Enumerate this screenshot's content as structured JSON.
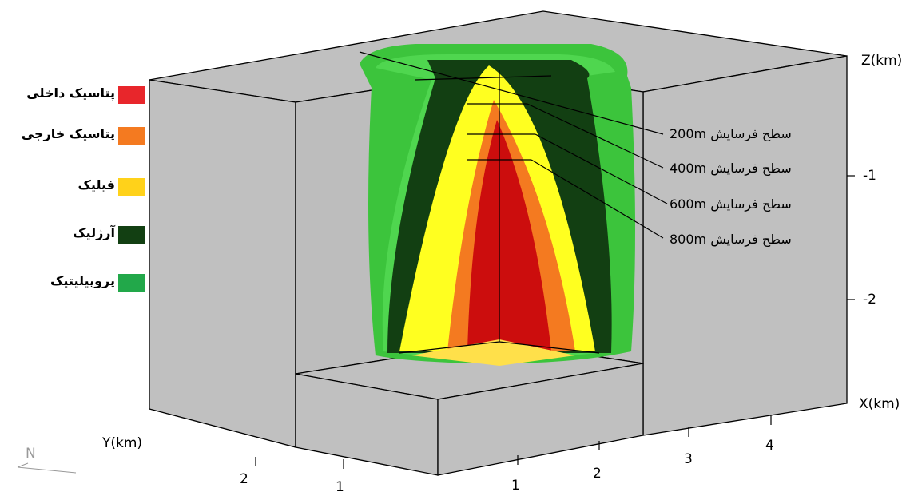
{
  "legend": [
    {
      "label": "پتاسیک داخلی",
      "color": "#e8262b"
    },
    {
      "label": "پتاسیک خارجی",
      "color": "#f47a20"
    },
    {
      "label": "فیلیک",
      "color": "#ffd21a"
    },
    {
      "label": "آرژلیک",
      "color": "#123f12"
    },
    {
      "label": "پروپیلیتیک",
      "color": "#22a84a"
    }
  ],
  "annotations": [
    "سطح فرسایش 200m",
    "سطح فرسایش 400m",
    "سطح فرسایش 600m",
    "سطح فرسایش 800m"
  ],
  "axes": {
    "z": {
      "label": "Z(km)",
      "ticks": [
        "-1",
        "-2"
      ]
    },
    "x": {
      "label": "X(km)",
      "ticks": [
        "1",
        "2",
        "3",
        "4"
      ]
    },
    "y": {
      "label": "Y(km)",
      "ticks": [
        "2",
        "1"
      ]
    }
  },
  "north": "N"
}
